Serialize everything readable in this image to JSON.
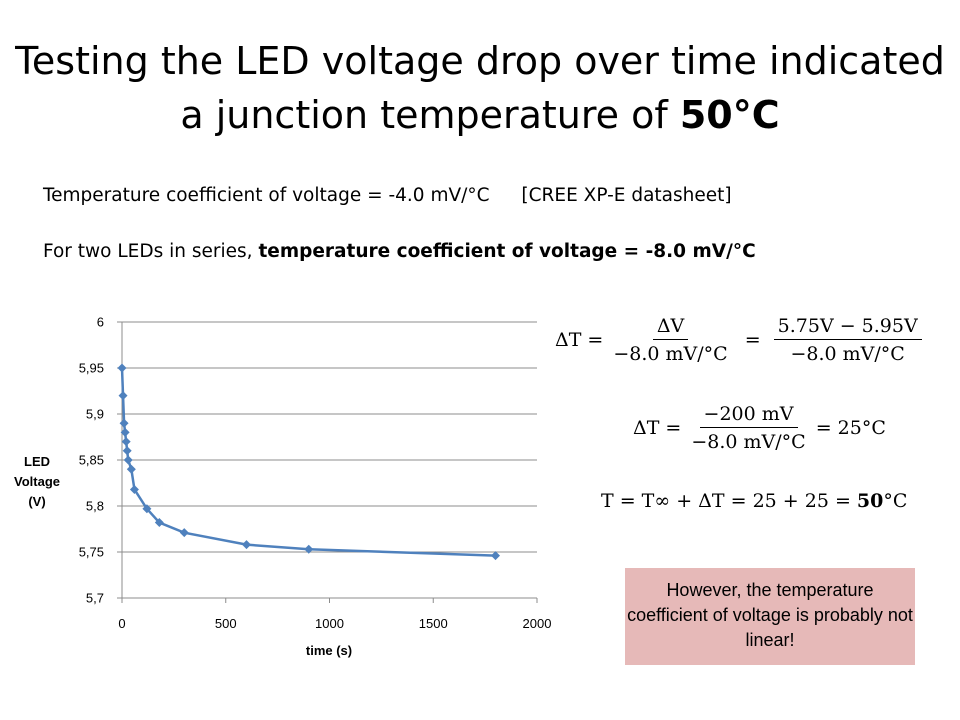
{
  "slide": {
    "title_pre": "Testing the LED voltage drop over time indicated a junction temperature of",
    "title_bold": "50°C",
    "line1_text": "Temperature coefficient of voltage = -4.0 mV/°C",
    "line1_ref": "[CREE XP-E datasheet]",
    "line2_pre": "For two LEDs in series,",
    "line2_bold": "temperature coefficient of voltage = -8.0 mV/°C"
  },
  "equations": {
    "eq1": {
      "lhs": "ΔT =",
      "f1_num": "ΔV",
      "f1_den": "−8.0  mV/°C",
      "eq": "=",
      "f2_num": "5.75V  − 5.95V",
      "f2_den": "−8.0  mV/°C"
    },
    "eq2": {
      "lhs": "ΔT =",
      "f1_num": "−200 mV",
      "f1_den": "−8.0  mV/°C",
      "rhs": "= 25°C"
    },
    "eq3": {
      "lhs": "T = T∞ + ΔT = 25 + 25 =",
      "bold": "50",
      "unit": "°C"
    }
  },
  "note": {
    "text": "However, the temperature coefficient of voltage is probably not linear!"
  },
  "chart_data": {
    "type": "line",
    "xlabel": "time (s)",
    "ylabel_lines": [
      "LED",
      "Voltage",
      "(V)"
    ],
    "xlim": [
      0,
      2000
    ],
    "ylim": [
      5.7,
      6.0
    ],
    "x_ticks": [
      0,
      500,
      1000,
      1500,
      2000
    ],
    "x_tick_labels": [
      "0",
      "500",
      "1000",
      "1500",
      "2000"
    ],
    "y_ticks": [
      5.7,
      5.75,
      5.8,
      5.85,
      5.9,
      5.95,
      6.0
    ],
    "y_tick_labels": [
      "5,7",
      "5,75",
      "5,8",
      "5,85",
      "5,9",
      "5,95",
      "6"
    ],
    "grid": "horizontal",
    "legend": "none",
    "series_color": "#4f81bd",
    "x": [
      0,
      5,
      10,
      15,
      20,
      25,
      30,
      45,
      60,
      120,
      180,
      300,
      600,
      900,
      1800
    ],
    "y": [
      5.95,
      5.92,
      5.89,
      5.88,
      5.87,
      5.86,
      5.85,
      5.84,
      5.818,
      5.797,
      5.782,
      5.771,
      5.758,
      5.753,
      5.746
    ]
  }
}
